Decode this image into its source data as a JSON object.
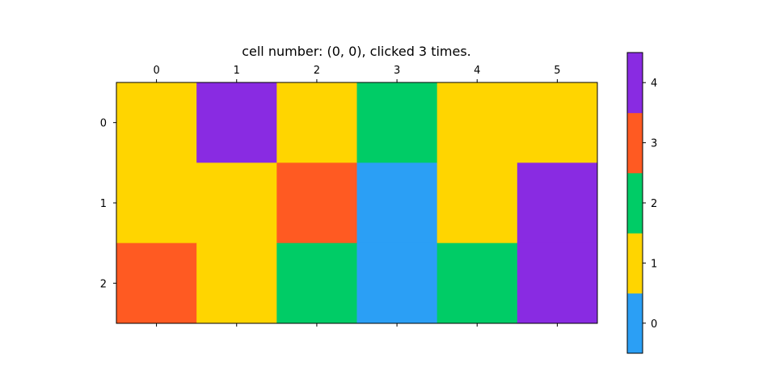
{
  "chart_data": {
    "type": "heatmap",
    "title": "cell number: (0, 0), clicked 3 times.",
    "x_ticks": [
      "0",
      "1",
      "2",
      "3",
      "4",
      "5"
    ],
    "y_ticks": [
      "0",
      "1",
      "2"
    ],
    "x_axis_position": "top",
    "grid": false,
    "values": [
      [
        1,
        4,
        1,
        2,
        1,
        1
      ],
      [
        1,
        1,
        3,
        0,
        1,
        4
      ],
      [
        3,
        1,
        2,
        0,
        2,
        4
      ]
    ],
    "colorbar": {
      "ticks": [
        "0",
        "1",
        "2",
        "3",
        "4"
      ],
      "range": [
        -0.5,
        4.5
      ],
      "position": "right"
    },
    "colors": {
      "0": "#2b9ff5",
      "1": "#ffd500",
      "2": "#00cc66",
      "3": "#ff5a22",
      "4": "#892be2"
    }
  }
}
